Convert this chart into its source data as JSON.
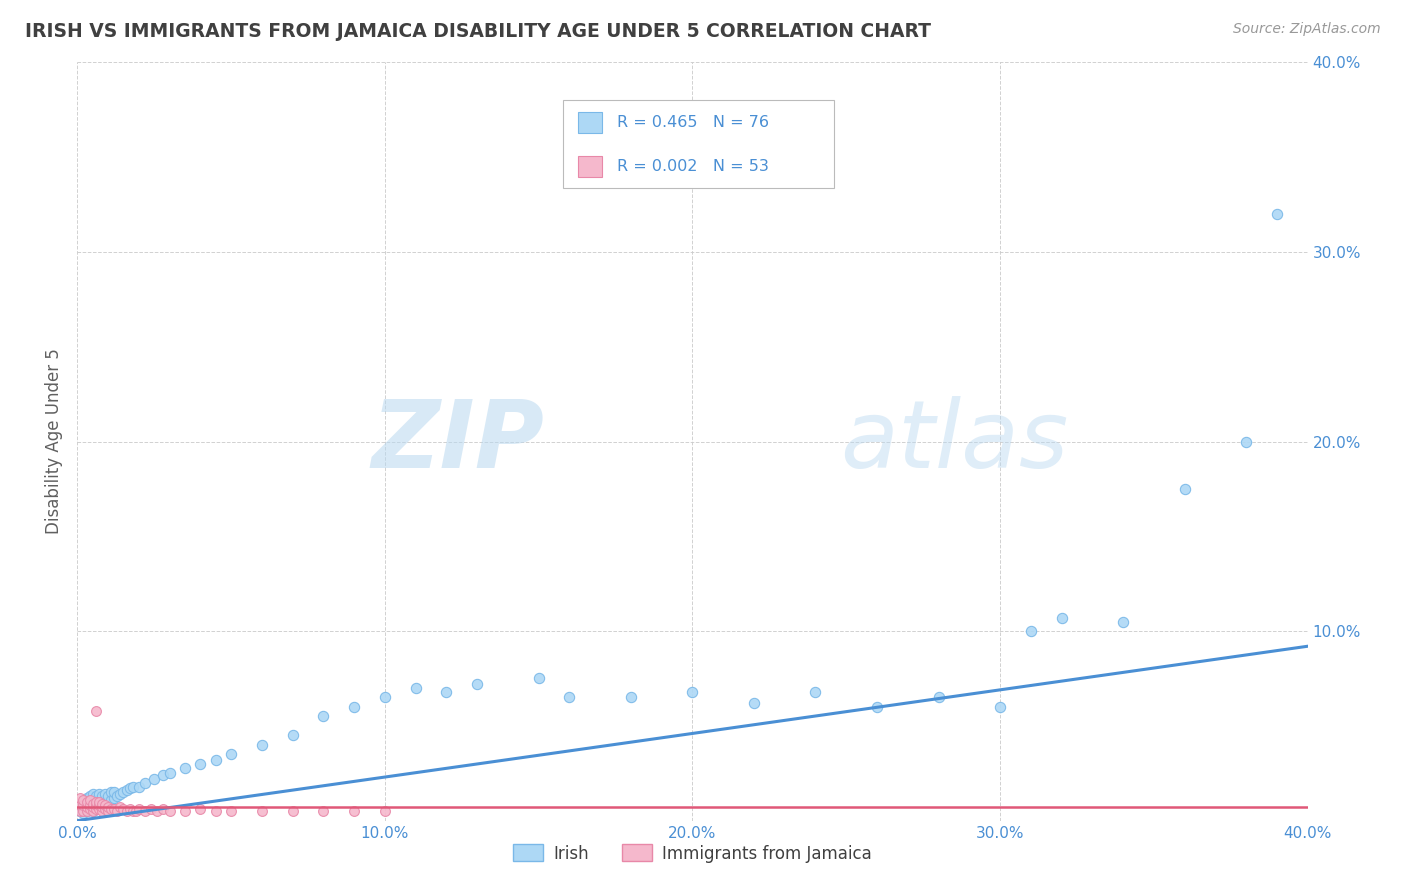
{
  "title": "IRISH VS IMMIGRANTS FROM JAMAICA DISABILITY AGE UNDER 5 CORRELATION CHART",
  "source": "Source: ZipAtlas.com",
  "ylabel": "Disability Age Under 5",
  "xlim": [
    0.0,
    0.4
  ],
  "ylim": [
    0.0,
    0.4
  ],
  "xticks": [
    0.0,
    0.1,
    0.2,
    0.3,
    0.4
  ],
  "yticks": [
    0.1,
    0.2,
    0.3,
    0.4
  ],
  "watermark_zip": "ZIP",
  "watermark_atlas": "atlas",
  "legend_labels": [
    "Irish",
    "Immigrants from Jamaica"
  ],
  "irish_R": "0.465",
  "irish_N": "76",
  "jamaica_R": "0.002",
  "jamaica_N": "53",
  "irish_color": "#add8f5",
  "irish_edge_color": "#7ab8e8",
  "jamaica_color": "#f5b8cc",
  "jamaica_edge_color": "#e888a8",
  "trend_irish_color": "#4a8fd4",
  "trend_jamaica_color": "#e05878",
  "background_color": "#ffffff",
  "grid_color": "#cccccc",
  "title_color": "#404040",
  "axis_tick_color": "#4a8fd4",
  "ylabel_color": "#606060",
  "irish_x": [
    0.001,
    0.001,
    0.002,
    0.002,
    0.002,
    0.003,
    0.003,
    0.003,
    0.003,
    0.004,
    0.004,
    0.004,
    0.004,
    0.005,
    0.005,
    0.005,
    0.005,
    0.005,
    0.006,
    0.006,
    0.006,
    0.006,
    0.007,
    0.007,
    0.007,
    0.007,
    0.008,
    0.008,
    0.008,
    0.009,
    0.009,
    0.009,
    0.01,
    0.01,
    0.011,
    0.011,
    0.012,
    0.012,
    0.013,
    0.014,
    0.015,
    0.016,
    0.017,
    0.018,
    0.02,
    0.022,
    0.025,
    0.028,
    0.03,
    0.035,
    0.04,
    0.045,
    0.05,
    0.06,
    0.07,
    0.08,
    0.09,
    0.1,
    0.11,
    0.12,
    0.13,
    0.15,
    0.16,
    0.18,
    0.2,
    0.22,
    0.24,
    0.26,
    0.28,
    0.3,
    0.31,
    0.32,
    0.34,
    0.36,
    0.38,
    0.39
  ],
  "irish_y": [
    0.005,
    0.008,
    0.004,
    0.006,
    0.01,
    0.005,
    0.007,
    0.009,
    0.012,
    0.006,
    0.008,
    0.01,
    0.013,
    0.005,
    0.007,
    0.009,
    0.011,
    0.014,
    0.006,
    0.008,
    0.01,
    0.013,
    0.007,
    0.009,
    0.011,
    0.014,
    0.008,
    0.01,
    0.013,
    0.009,
    0.011,
    0.014,
    0.01,
    0.013,
    0.011,
    0.015,
    0.012,
    0.015,
    0.013,
    0.014,
    0.015,
    0.016,
    0.017,
    0.018,
    0.018,
    0.02,
    0.022,
    0.024,
    0.025,
    0.028,
    0.03,
    0.032,
    0.035,
    0.04,
    0.045,
    0.055,
    0.06,
    0.065,
    0.07,
    0.068,
    0.072,
    0.075,
    0.065,
    0.065,
    0.068,
    0.062,
    0.068,
    0.06,
    0.065,
    0.06,
    0.1,
    0.107,
    0.105,
    0.175,
    0.2,
    0.32
  ],
  "jamaica_x": [
    0.001,
    0.001,
    0.001,
    0.002,
    0.002,
    0.002,
    0.003,
    0.003,
    0.003,
    0.004,
    0.004,
    0.004,
    0.005,
    0.005,
    0.005,
    0.006,
    0.006,
    0.006,
    0.006,
    0.007,
    0.007,
    0.007,
    0.008,
    0.008,
    0.008,
    0.009,
    0.009,
    0.01,
    0.01,
    0.011,
    0.012,
    0.013,
    0.014,
    0.015,
    0.016,
    0.017,
    0.018,
    0.019,
    0.02,
    0.022,
    0.024,
    0.026,
    0.028,
    0.03,
    0.035,
    0.04,
    0.045,
    0.05,
    0.06,
    0.07,
    0.08,
    0.09,
    0.1
  ],
  "jamaica_y": [
    0.005,
    0.008,
    0.012,
    0.005,
    0.008,
    0.011,
    0.005,
    0.007,
    0.01,
    0.006,
    0.008,
    0.011,
    0.005,
    0.007,
    0.009,
    0.006,
    0.008,
    0.01,
    0.058,
    0.006,
    0.008,
    0.01,
    0.005,
    0.007,
    0.009,
    0.006,
    0.008,
    0.005,
    0.007,
    0.006,
    0.006,
    0.005,
    0.007,
    0.006,
    0.005,
    0.006,
    0.005,
    0.005,
    0.006,
    0.005,
    0.006,
    0.005,
    0.006,
    0.005,
    0.005,
    0.006,
    0.005,
    0.005,
    0.005,
    0.005,
    0.005,
    0.005,
    0.005
  ],
  "irish_trend_x0": 0.0,
  "irish_trend_y0": 0.0,
  "irish_trend_x1": 0.4,
  "irish_trend_y1": 0.092,
  "jamaica_trend_x0": 0.0,
  "jamaica_trend_y0": 0.007,
  "jamaica_trend_x1": 0.4,
  "jamaica_trend_y1": 0.007
}
